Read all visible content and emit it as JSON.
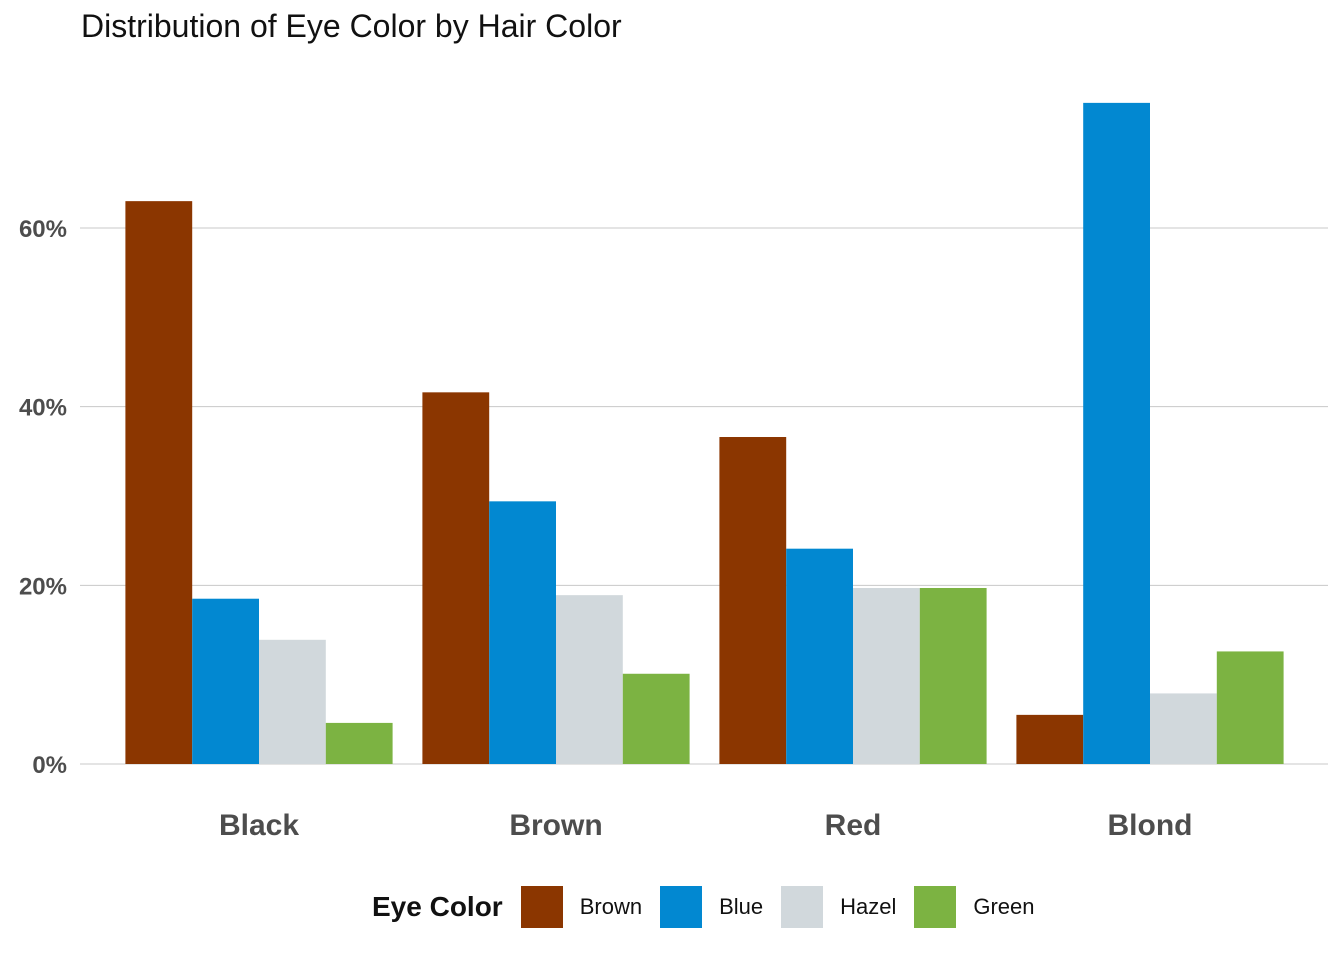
{
  "chart_data": {
    "type": "bar",
    "title": "Distribution of Eye Color by Hair Color",
    "xlabel": "",
    "ylabel": "",
    "categories": [
      "Black",
      "Brown",
      "Red",
      "Blond"
    ],
    "series": [
      {
        "name": "Brown",
        "color": "#8B3600",
        "values": [
          63.0,
          41.6,
          36.6,
          5.5
        ]
      },
      {
        "name": "Blue",
        "color": "#0288D1",
        "values": [
          18.5,
          29.4,
          24.1,
          74.0
        ]
      },
      {
        "name": "Hazel",
        "color": "#D1D8DC",
        "values": [
          13.9,
          18.9,
          19.7,
          7.9
        ]
      },
      {
        "name": "Green",
        "color": "#7CB342",
        "values": [
          4.6,
          10.1,
          19.7,
          12.6
        ]
      }
    ],
    "ylim": [
      0,
      76
    ],
    "yticks": [
      0,
      20,
      40,
      60
    ],
    "ytick_labels": [
      "0%",
      "20%",
      "40%",
      "60%"
    ],
    "grid": "horizontal-major",
    "legend": {
      "title": "Eye Color",
      "position": "bottom"
    }
  }
}
